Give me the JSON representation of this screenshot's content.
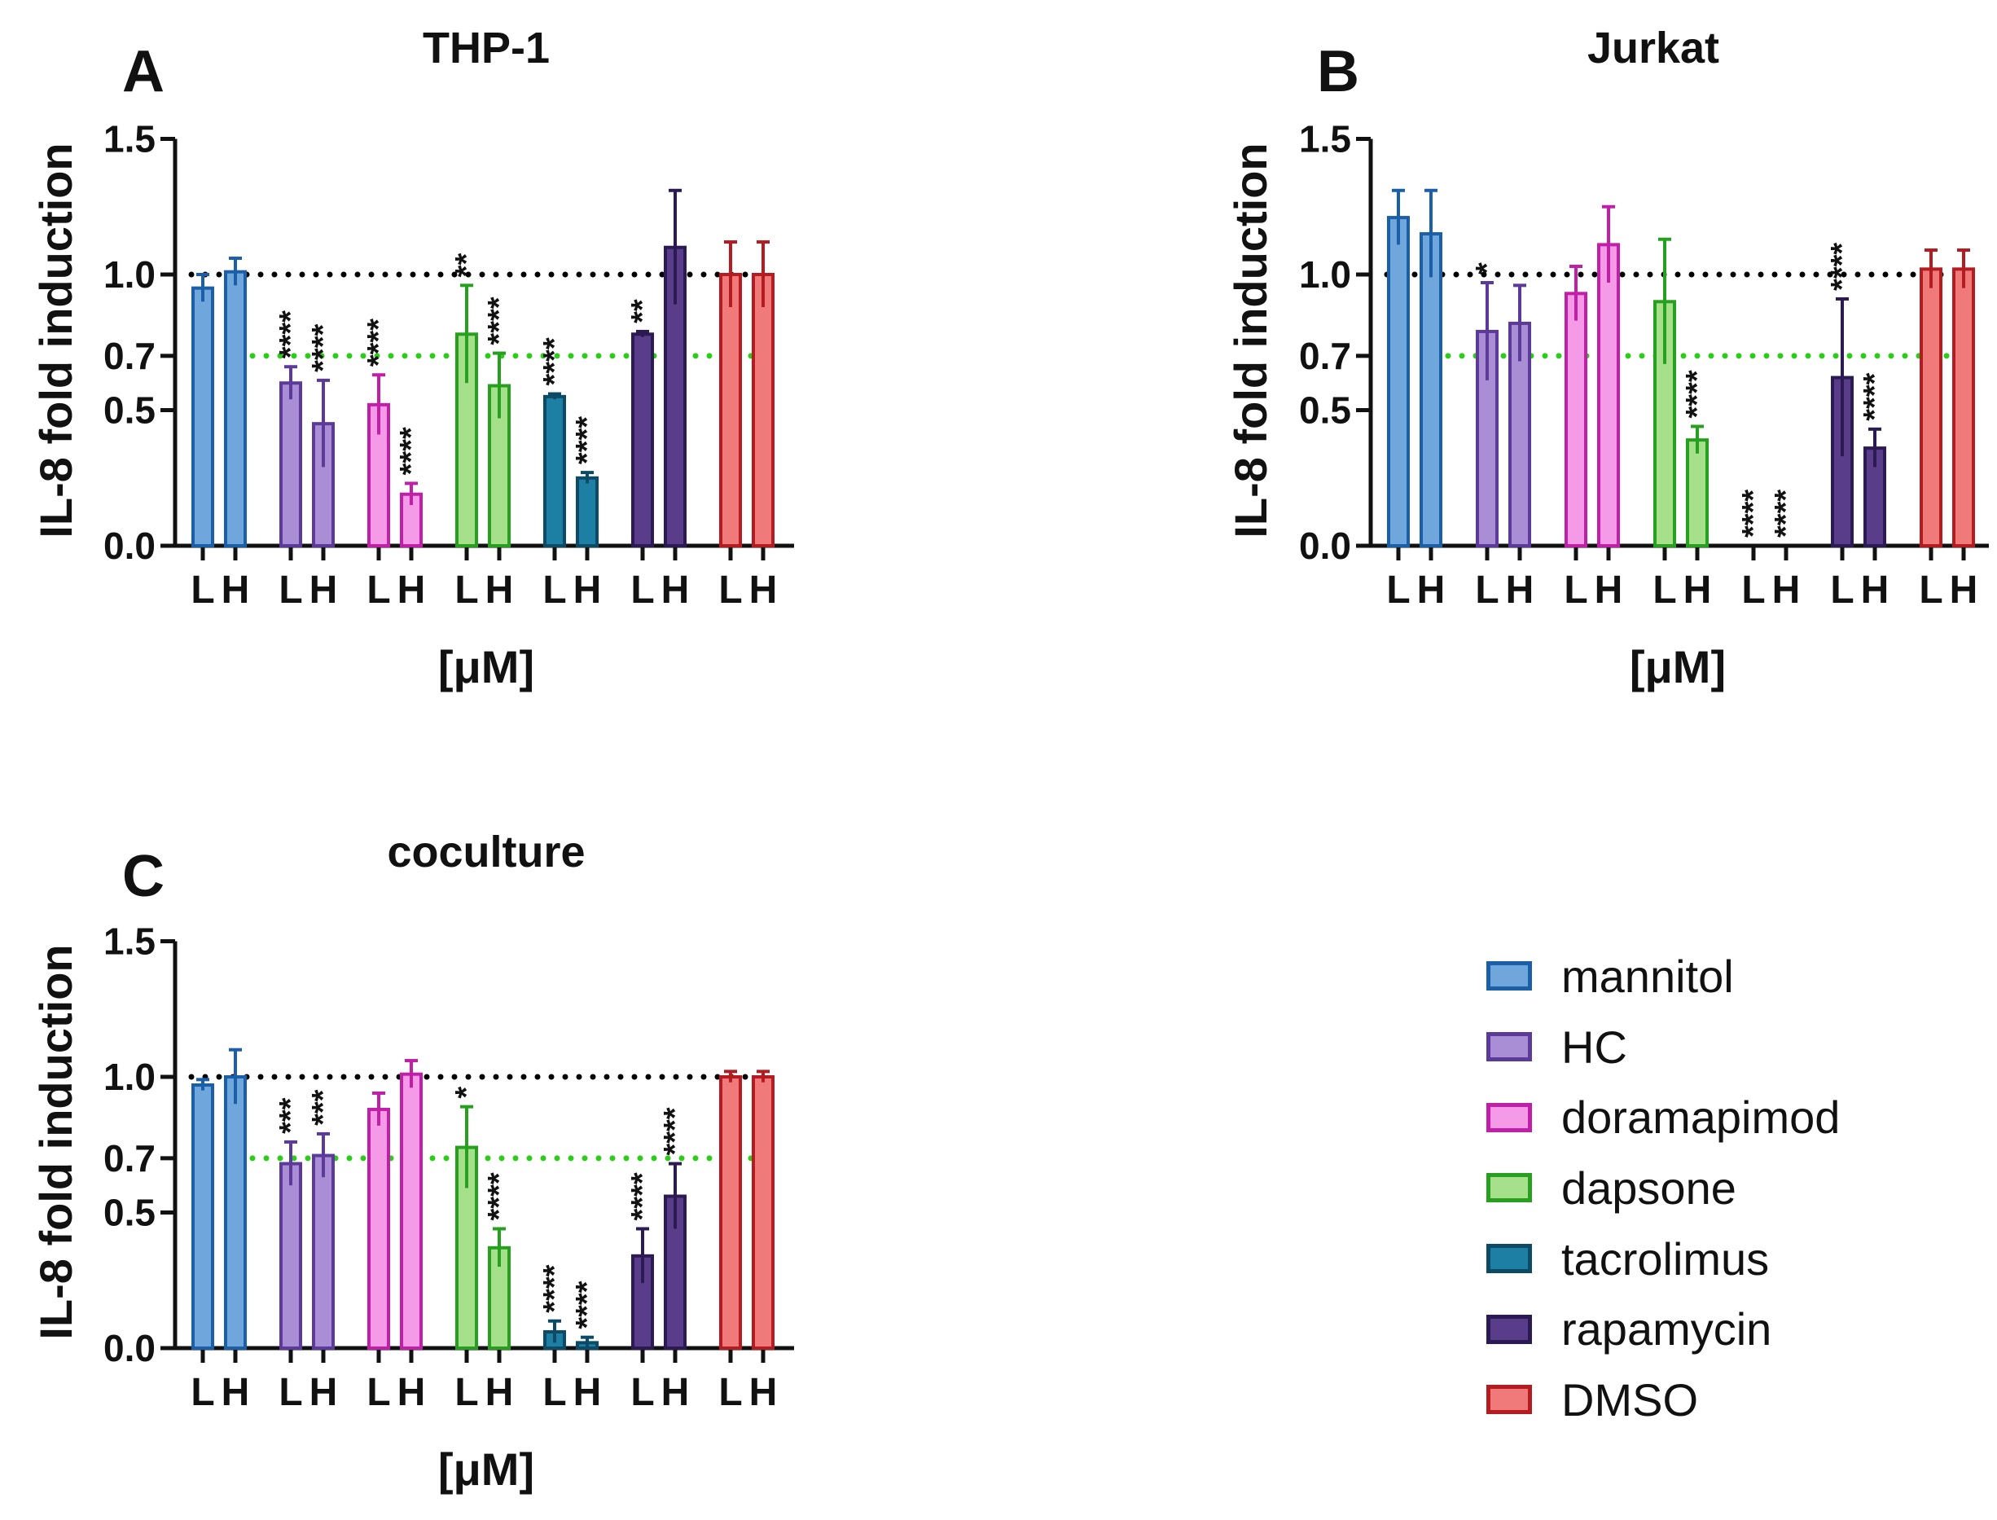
{
  "figure": {
    "ylabel": "IL-8 fold induction",
    "xlabel": "[μM]",
    "yticks": [
      0.0,
      0.5,
      0.7,
      1.0,
      1.5
    ],
    "ytick_labels": [
      "0.0",
      "0.5",
      "0.7",
      "1.0",
      "1.5"
    ],
    "ref_lines": [
      {
        "value": 1.0,
        "color": "#000000"
      },
      {
        "value": 0.7,
        "color": "#2ecc1a"
      }
    ],
    "groups": [
      {
        "name": "mannitol",
        "fill": "#6fa6dc",
        "stroke": "#1a5fa8"
      },
      {
        "name": "HC",
        "fill": "#a98ed6",
        "stroke": "#5b3a9a"
      },
      {
        "name": "doramapimod",
        "fill": "#f59ae6",
        "stroke": "#c21fa8"
      },
      {
        "name": "dapsone",
        "fill": "#a6e08b",
        "stroke": "#27a020"
      },
      {
        "name": "tacrolimus",
        "fill": "#1e7fa5",
        "stroke": "#0c4a66"
      },
      {
        "name": "rapamycin",
        "fill": "#5a3d8a",
        "stroke": "#2c1a52"
      },
      {
        "name": "DMSO",
        "fill": "#f07a7a",
        "stroke": "#b51c22"
      }
    ],
    "dose_labels": [
      "L",
      "H"
    ]
  },
  "chart_data": [
    {
      "type": "bar",
      "panel": "A",
      "title": "THP-1",
      "categories": [
        "mannitol L",
        "mannitol H",
        "HC L",
        "HC H",
        "doramapimod L",
        "doramapimod H",
        "dapsone L",
        "dapsone H",
        "tacrolimus L",
        "tacrolimus H",
        "rapamycin L",
        "rapamycin H",
        "DMSO L",
        "DMSO H"
      ],
      "values": [
        0.95,
        1.01,
        0.6,
        0.45,
        0.52,
        0.19,
        0.78,
        0.59,
        0.55,
        0.25,
        0.78,
        1.1,
        1.0,
        1.0
      ],
      "errors": [
        0.05,
        0.05,
        0.06,
        0.16,
        0.11,
        0.04,
        0.18,
        0.12,
        0.01,
        0.02,
        0.01,
        0.21,
        0.12,
        0.12
      ],
      "significance": [
        "",
        "",
        "****",
        "****",
        "****",
        "****",
        "**",
        "****",
        "****",
        "****",
        "**",
        "",
        "",
        ""
      ],
      "xlabel": "[μM]",
      "ylabel": "IL-8 fold induction",
      "ylim": [
        0,
        1.5
      ]
    },
    {
      "type": "bar",
      "panel": "B",
      "title": "Jurkat",
      "categories": [
        "mannitol L",
        "mannitol H",
        "HC L",
        "HC H",
        "doramapimod L",
        "doramapimod H",
        "dapsone L",
        "dapsone H",
        "tacrolimus L",
        "tacrolimus H",
        "rapamycin L",
        "rapamycin H",
        "DMSO L",
        "DMSO H"
      ],
      "values": [
        1.21,
        1.15,
        0.79,
        0.82,
        0.93,
        1.11,
        0.9,
        0.39,
        0.0,
        0.0,
        0.62,
        0.36,
        1.02,
        1.02
      ],
      "errors": [
        0.1,
        0.16,
        0.18,
        0.14,
        0.1,
        0.14,
        0.23,
        0.05,
        0.0,
        0.0,
        0.29,
        0.07,
        0.07,
        0.07
      ],
      "significance": [
        "",
        "",
        "*",
        "",
        "",
        "",
        "",
        "****",
        "****",
        "****",
        "****",
        "****",
        "",
        ""
      ],
      "xlabel": "[μM]",
      "ylabel": "IL-8 fold induction",
      "ylim": [
        0,
        1.5
      ]
    },
    {
      "type": "bar",
      "panel": "C",
      "title": "coculture",
      "categories": [
        "mannitol L",
        "mannitol H",
        "HC L",
        "HC H",
        "doramapimod L",
        "doramapimod H",
        "dapsone L",
        "dapsone H",
        "tacrolimus L",
        "tacrolimus H",
        "rapamycin L",
        "rapamycin H",
        "DMSO L",
        "DMSO H"
      ],
      "values": [
        0.97,
        1.0,
        0.68,
        0.71,
        0.88,
        1.01,
        0.74,
        0.37,
        0.06,
        0.02,
        0.34,
        0.56,
        1.0,
        1.0
      ],
      "errors": [
        0.02,
        0.1,
        0.08,
        0.08,
        0.06,
        0.05,
        0.15,
        0.07,
        0.04,
        0.02,
        0.1,
        0.12,
        0.02,
        0.02
      ],
      "significance": [
        "",
        "",
        "***",
        "***",
        "",
        "",
        "*",
        "****",
        "****",
        "****",
        "****",
        "****",
        "",
        ""
      ],
      "xlabel": "[μM]",
      "ylabel": "IL-8 fold induction",
      "ylim": [
        0,
        1.5
      ]
    }
  ]
}
